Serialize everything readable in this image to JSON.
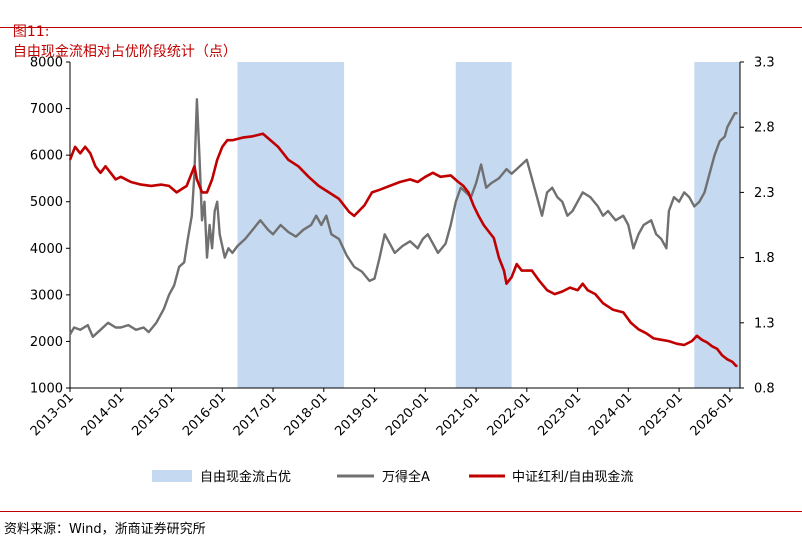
{
  "header": {
    "figure_no": "图11:",
    "title": "自由现金流相对占优阶段统计（点）"
  },
  "footer": {
    "source": "资料来源：Wind，浙商证券研究所"
  },
  "colors": {
    "accent": "#c00000",
    "gray_series": "#707070",
    "red_series": "#c00000",
    "shade": "#c5d9f1"
  },
  "chart_data": {
    "type": "line",
    "title": "自由现金流相对占优阶段统计（点）",
    "x_ticks": [
      "2013-01",
      "2014-01",
      "2015-01",
      "2016-01",
      "2017-01",
      "2018-01",
      "2019-01",
      "2020-01",
      "2021-01",
      "2022-01",
      "2023-01",
      "2024-01",
      "2025-01",
      "2026-01"
    ],
    "x_range": [
      2013.0,
      2026.2
    ],
    "y_left": {
      "min": 1000,
      "max": 8000,
      "ticks": [
        "1000",
        "2000",
        "3000",
        "4000",
        "5000",
        "6000",
        "7000",
        "8000"
      ]
    },
    "y_right": {
      "min": 0.8,
      "max": 3.3,
      "ticks": [
        "0.8",
        "1.3",
        "1.8",
        "2.3",
        "2.8",
        "3.3"
      ]
    },
    "shaded_periods": [
      {
        "start": 2016.3,
        "end": 2018.4
      },
      {
        "start": 2020.6,
        "end": 2021.7
      },
      {
        "start": 2025.3,
        "end": 2026.2
      }
    ],
    "legend": [
      {
        "key": "shade",
        "label": "自由现金流占优"
      },
      {
        "key": "gray",
        "label": "万得全A"
      },
      {
        "key": "red",
        "label": "中证红利/自由现金流"
      }
    ],
    "series": [
      {
        "name": "万得全A",
        "axis": "left",
        "points": [
          [
            2013.0,
            2150
          ],
          [
            2013.08,
            2300
          ],
          [
            2013.2,
            2250
          ],
          [
            2013.35,
            2350
          ],
          [
            2013.45,
            2100
          ],
          [
            2013.6,
            2250
          ],
          [
            2013.75,
            2400
          ],
          [
            2013.9,
            2300
          ],
          [
            2014.0,
            2300
          ],
          [
            2014.15,
            2350
          ],
          [
            2014.3,
            2250
          ],
          [
            2014.45,
            2300
          ],
          [
            2014.55,
            2200
          ],
          [
            2014.7,
            2400
          ],
          [
            2014.85,
            2700
          ],
          [
            2014.95,
            3000
          ],
          [
            2015.05,
            3200
          ],
          [
            2015.15,
            3600
          ],
          [
            2015.25,
            3700
          ],
          [
            2015.32,
            4200
          ],
          [
            2015.4,
            4700
          ],
          [
            2015.45,
            5600
          ],
          [
            2015.5,
            7200
          ],
          [
            2015.55,
            6000
          ],
          [
            2015.6,
            4600
          ],
          [
            2015.65,
            5000
          ],
          [
            2015.7,
            3800
          ],
          [
            2015.75,
            4500
          ],
          [
            2015.8,
            4000
          ],
          [
            2015.85,
            4800
          ],
          [
            2015.9,
            5000
          ],
          [
            2015.95,
            4300
          ],
          [
            2016.05,
            3800
          ],
          [
            2016.12,
            4000
          ],
          [
            2016.2,
            3900
          ],
          [
            2016.3,
            4050
          ],
          [
            2016.45,
            4200
          ],
          [
            2016.6,
            4400
          ],
          [
            2016.75,
            4600
          ],
          [
            2016.9,
            4400
          ],
          [
            2017.0,
            4300
          ],
          [
            2017.15,
            4500
          ],
          [
            2017.3,
            4350
          ],
          [
            2017.45,
            4250
          ],
          [
            2017.6,
            4400
          ],
          [
            2017.75,
            4500
          ],
          [
            2017.85,
            4700
          ],
          [
            2017.95,
            4500
          ],
          [
            2018.05,
            4700
          ],
          [
            2018.15,
            4300
          ],
          [
            2018.3,
            4200
          ],
          [
            2018.45,
            3850
          ],
          [
            2018.6,
            3600
          ],
          [
            2018.75,
            3500
          ],
          [
            2018.9,
            3300
          ],
          [
            2019.0,
            3350
          ],
          [
            2019.1,
            3800
          ],
          [
            2019.2,
            4300
          ],
          [
            2019.3,
            4100
          ],
          [
            2019.4,
            3900
          ],
          [
            2019.55,
            4050
          ],
          [
            2019.7,
            4150
          ],
          [
            2019.85,
            4000
          ],
          [
            2019.95,
            4200
          ],
          [
            2020.05,
            4300
          ],
          [
            2020.15,
            4100
          ],
          [
            2020.25,
            3900
          ],
          [
            2020.4,
            4100
          ],
          [
            2020.5,
            4500
          ],
          [
            2020.6,
            5000
          ],
          [
            2020.7,
            5300
          ],
          [
            2020.8,
            5200
          ],
          [
            2020.9,
            5100
          ],
          [
            2021.0,
            5400
          ],
          [
            2021.1,
            5800
          ],
          [
            2021.2,
            5300
          ],
          [
            2021.3,
            5400
          ],
          [
            2021.45,
            5500
          ],
          [
            2021.6,
            5700
          ],
          [
            2021.7,
            5600
          ],
          [
            2021.8,
            5700
          ],
          [
            2021.9,
            5800
          ],
          [
            2022.0,
            5900
          ],
          [
            2022.1,
            5500
          ],
          [
            2022.2,
            5100
          ],
          [
            2022.3,
            4700
          ],
          [
            2022.4,
            5200
          ],
          [
            2022.5,
            5300
          ],
          [
            2022.6,
            5100
          ],
          [
            2022.7,
            5000
          ],
          [
            2022.8,
            4700
          ],
          [
            2022.9,
            4800
          ],
          [
            2023.0,
            5000
          ],
          [
            2023.1,
            5200
          ],
          [
            2023.25,
            5100
          ],
          [
            2023.4,
            4900
          ],
          [
            2023.5,
            4700
          ],
          [
            2023.6,
            4800
          ],
          [
            2023.75,
            4600
          ],
          [
            2023.9,
            4700
          ],
          [
            2024.0,
            4500
          ],
          [
            2024.1,
            4000
          ],
          [
            2024.2,
            4300
          ],
          [
            2024.3,
            4500
          ],
          [
            2024.45,
            4600
          ],
          [
            2024.55,
            4300
          ],
          [
            2024.65,
            4200
          ],
          [
            2024.75,
            4000
          ],
          [
            2024.8,
            4800
          ],
          [
            2024.9,
            5100
          ],
          [
            2025.0,
            5000
          ],
          [
            2025.1,
            5200
          ],
          [
            2025.2,
            5100
          ],
          [
            2025.3,
            4900
          ],
          [
            2025.4,
            5000
          ],
          [
            2025.5,
            5200
          ],
          [
            2025.6,
            5600
          ],
          [
            2025.7,
            6000
          ],
          [
            2025.8,
            6300
          ],
          [
            2025.9,
            6400
          ],
          [
            2025.95,
            6600
          ],
          [
            2026.0,
            6700
          ],
          [
            2026.1,
            6900
          ],
          [
            2026.15,
            6900
          ]
        ]
      },
      {
        "name": "中证红利/自由现金流",
        "axis": "right",
        "points": [
          [
            2013.0,
            2.55
          ],
          [
            2013.1,
            2.65
          ],
          [
            2013.2,
            2.6
          ],
          [
            2013.3,
            2.65
          ],
          [
            2013.4,
            2.6
          ],
          [
            2013.5,
            2.5
          ],
          [
            2013.6,
            2.45
          ],
          [
            2013.7,
            2.5
          ],
          [
            2013.8,
            2.45
          ],
          [
            2013.9,
            2.4
          ],
          [
            2014.0,
            2.42
          ],
          [
            2014.2,
            2.38
          ],
          [
            2014.4,
            2.36
          ],
          [
            2014.6,
            2.35
          ],
          [
            2014.8,
            2.36
          ],
          [
            2014.95,
            2.35
          ],
          [
            2015.1,
            2.3
          ],
          [
            2015.3,
            2.35
          ],
          [
            2015.45,
            2.5
          ],
          [
            2015.5,
            2.4
          ],
          [
            2015.6,
            2.3
          ],
          [
            2015.7,
            2.3
          ],
          [
            2015.8,
            2.4
          ],
          [
            2015.9,
            2.55
          ],
          [
            2016.0,
            2.65
          ],
          [
            2016.1,
            2.7
          ],
          [
            2016.2,
            2.7
          ],
          [
            2016.4,
            2.72
          ],
          [
            2016.6,
            2.73
          ],
          [
            2016.8,
            2.75
          ],
          [
            2016.95,
            2.7
          ],
          [
            2017.1,
            2.65
          ],
          [
            2017.3,
            2.55
          ],
          [
            2017.5,
            2.5
          ],
          [
            2017.7,
            2.42
          ],
          [
            2017.9,
            2.35
          ],
          [
            2018.1,
            2.3
          ],
          [
            2018.3,
            2.25
          ],
          [
            2018.5,
            2.15
          ],
          [
            2018.6,
            2.12
          ],
          [
            2018.8,
            2.2
          ],
          [
            2018.95,
            2.3
          ],
          [
            2019.1,
            2.32
          ],
          [
            2019.3,
            2.35
          ],
          [
            2019.5,
            2.38
          ],
          [
            2019.7,
            2.4
          ],
          [
            2019.85,
            2.38
          ],
          [
            2020.0,
            2.42
          ],
          [
            2020.15,
            2.45
          ],
          [
            2020.3,
            2.42
          ],
          [
            2020.5,
            2.43
          ],
          [
            2020.65,
            2.38
          ],
          [
            2020.75,
            2.35
          ],
          [
            2020.85,
            2.3
          ],
          [
            2020.95,
            2.2
          ],
          [
            2021.05,
            2.12
          ],
          [
            2021.15,
            2.05
          ],
          [
            2021.25,
            2.0
          ],
          [
            2021.35,
            1.95
          ],
          [
            2021.45,
            1.8
          ],
          [
            2021.55,
            1.7
          ],
          [
            2021.6,
            1.6
          ],
          [
            2021.7,
            1.65
          ],
          [
            2021.8,
            1.75
          ],
          [
            2021.9,
            1.7
          ],
          [
            2022.0,
            1.7
          ],
          [
            2022.1,
            1.7
          ],
          [
            2022.25,
            1.62
          ],
          [
            2022.4,
            1.55
          ],
          [
            2022.55,
            1.52
          ],
          [
            2022.7,
            1.54
          ],
          [
            2022.85,
            1.57
          ],
          [
            2023.0,
            1.55
          ],
          [
            2023.1,
            1.6
          ],
          [
            2023.2,
            1.55
          ],
          [
            2023.35,
            1.52
          ],
          [
            2023.5,
            1.45
          ],
          [
            2023.7,
            1.4
          ],
          [
            2023.9,
            1.38
          ],
          [
            2024.05,
            1.3
          ],
          [
            2024.2,
            1.25
          ],
          [
            2024.35,
            1.22
          ],
          [
            2024.5,
            1.18
          ],
          [
            2024.65,
            1.17
          ],
          [
            2024.8,
            1.16
          ],
          [
            2024.95,
            1.14
          ],
          [
            2025.1,
            1.13
          ],
          [
            2025.25,
            1.16
          ],
          [
            2025.35,
            1.2
          ],
          [
            2025.45,
            1.17
          ],
          [
            2025.55,
            1.15
          ],
          [
            2025.65,
            1.12
          ],
          [
            2025.75,
            1.1
          ],
          [
            2025.85,
            1.05
          ],
          [
            2025.95,
            1.02
          ],
          [
            2026.05,
            1.0
          ],
          [
            2026.12,
            0.97
          ],
          [
            2026.15,
            0.97
          ]
        ]
      }
    ]
  }
}
